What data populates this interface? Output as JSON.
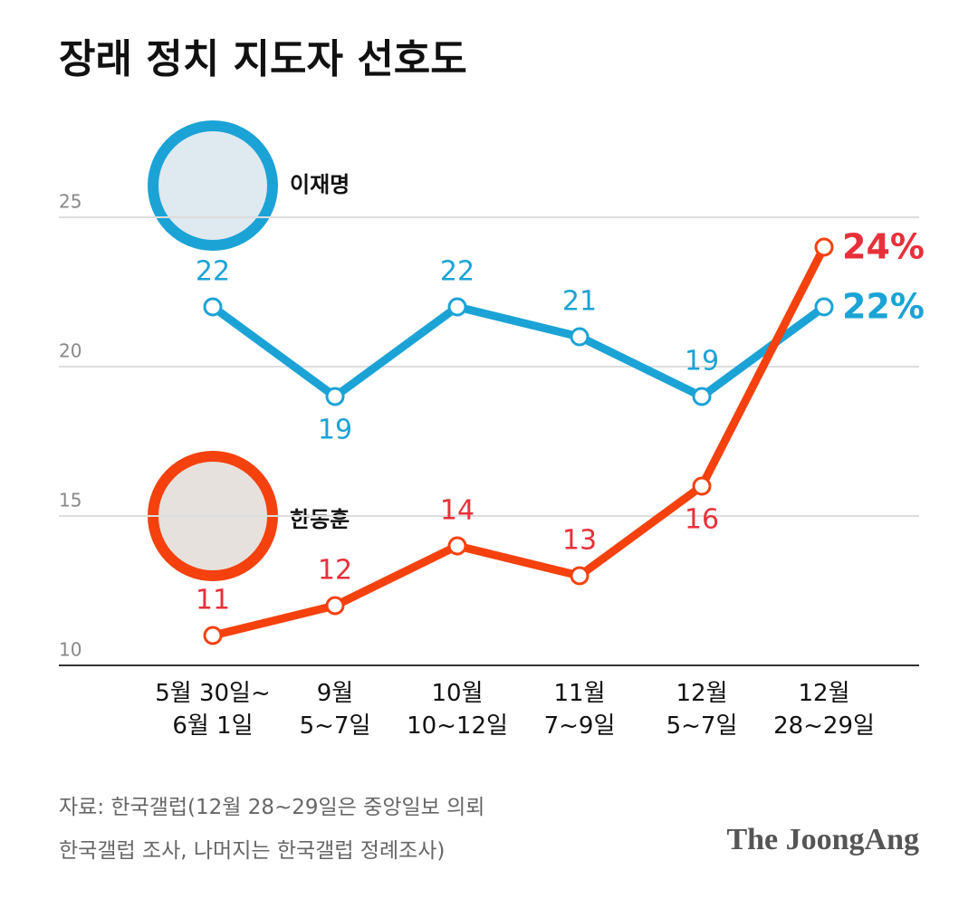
{
  "chart_data": {
    "type": "line",
    "title": "장래 정치 지도자 선호도",
    "categories": [
      "5월 30일~\n6월 1일",
      "9월\n5~7일",
      "10월\n10~12일",
      "11월\n7~9일",
      "12월\n5~7일",
      "12월\n28~29일"
    ],
    "series": [
      {
        "name": "이재명",
        "color": "#1ba3d6",
        "values": [
          22,
          19,
          22,
          21,
          19,
          22
        ],
        "value_labels": [
          "22",
          "19",
          "22",
          "21",
          "19",
          "22%"
        ]
      },
      {
        "name": "한동훈",
        "color": "#f5410e",
        "values": [
          11,
          12,
          14,
          13,
          16,
          24
        ],
        "value_labels": [
          "11",
          "12",
          "14",
          "13",
          "16",
          "24%"
        ]
      }
    ],
    "ylim": [
      10,
      25
    ],
    "yticks": [
      10,
      15,
      20,
      25
    ],
    "grid": true,
    "source": [
      "자료: 한국갤럽(12월 28~29일은 중앙일보 의뢰",
      "한국갤럽 조사, 나머지는 한국갤럽 정례조사)"
    ],
    "credit": "The JoongAng"
  }
}
